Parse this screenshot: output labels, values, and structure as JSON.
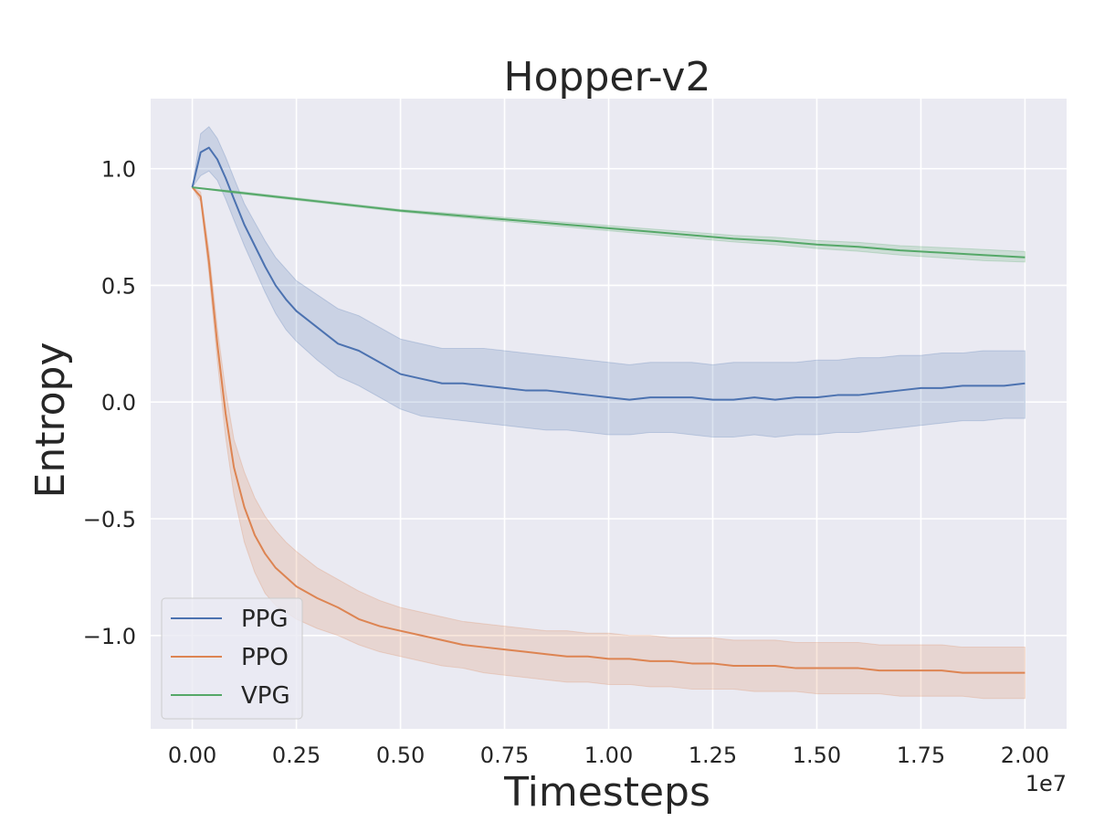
{
  "chart_data": {
    "type": "line",
    "title": "Hopper-v2",
    "xlabel": "Timesteps",
    "ylabel": "Entropy",
    "x_offset_label": "1e7",
    "xlim": [
      -0.1,
      2.1
    ],
    "ylim": [
      -1.4,
      1.3
    ],
    "x_ticks": [
      0.0,
      0.25,
      0.5,
      0.75,
      1.0,
      1.25,
      1.5,
      1.75,
      2.0
    ],
    "x_tick_labels": [
      "0.00",
      "0.25",
      "0.50",
      "0.75",
      "1.00",
      "1.25",
      "1.50",
      "1.75",
      "2.00"
    ],
    "y_ticks": [
      1.0,
      0.5,
      0.0,
      -0.5,
      -1.0
    ],
    "y_tick_labels": [
      "1.0",
      "0.5",
      "0.0",
      "−0.5",
      "−1.0"
    ],
    "grid": true,
    "background": "#eaeaf2",
    "legend_position": "lower-left",
    "series": [
      {
        "name": "PPG",
        "color": "#4c72b0",
        "x": [
          0.0,
          0.02,
          0.04,
          0.06,
          0.08,
          0.1,
          0.125,
          0.15,
          0.175,
          0.2,
          0.225,
          0.25,
          0.3,
          0.35,
          0.4,
          0.45,
          0.5,
          0.55,
          0.6,
          0.65,
          0.7,
          0.75,
          0.8,
          0.85,
          0.9,
          0.95,
          1.0,
          1.05,
          1.1,
          1.15,
          1.2,
          1.25,
          1.3,
          1.35,
          1.4,
          1.45,
          1.5,
          1.55,
          1.6,
          1.65,
          1.7,
          1.75,
          1.8,
          1.85,
          1.9,
          1.95,
          2.0
        ],
        "y": [
          0.92,
          1.07,
          1.09,
          1.04,
          0.96,
          0.87,
          0.76,
          0.67,
          0.58,
          0.5,
          0.44,
          0.39,
          0.32,
          0.25,
          0.22,
          0.17,
          0.12,
          0.1,
          0.08,
          0.08,
          0.07,
          0.06,
          0.05,
          0.05,
          0.04,
          0.03,
          0.02,
          0.01,
          0.02,
          0.02,
          0.02,
          0.01,
          0.01,
          0.02,
          0.01,
          0.02,
          0.02,
          0.03,
          0.03,
          0.04,
          0.05,
          0.06,
          0.06,
          0.07,
          0.07,
          0.07,
          0.08
        ],
        "y_lower": [
          0.92,
          0.97,
          0.99,
          0.95,
          0.87,
          0.78,
          0.67,
          0.57,
          0.47,
          0.38,
          0.31,
          0.26,
          0.18,
          0.11,
          0.07,
          0.02,
          -0.03,
          -0.06,
          -0.07,
          -0.08,
          -0.09,
          -0.1,
          -0.11,
          -0.12,
          -0.12,
          -0.13,
          -0.14,
          -0.14,
          -0.13,
          -0.13,
          -0.14,
          -0.15,
          -0.15,
          -0.14,
          -0.15,
          -0.14,
          -0.14,
          -0.13,
          -0.13,
          -0.12,
          -0.11,
          -0.1,
          -0.09,
          -0.08,
          -0.08,
          -0.07,
          -0.07
        ],
        "y_upper": [
          0.92,
          1.15,
          1.18,
          1.13,
          1.05,
          0.96,
          0.85,
          0.77,
          0.69,
          0.62,
          0.57,
          0.52,
          0.46,
          0.4,
          0.37,
          0.32,
          0.27,
          0.25,
          0.23,
          0.23,
          0.23,
          0.22,
          0.21,
          0.2,
          0.19,
          0.18,
          0.17,
          0.16,
          0.17,
          0.17,
          0.17,
          0.16,
          0.17,
          0.17,
          0.17,
          0.17,
          0.18,
          0.18,
          0.19,
          0.19,
          0.2,
          0.2,
          0.21,
          0.21,
          0.22,
          0.22,
          0.22
        ]
      },
      {
        "name": "PPO",
        "color": "#dd8452",
        "x": [
          0.0,
          0.02,
          0.04,
          0.06,
          0.08,
          0.1,
          0.125,
          0.15,
          0.175,
          0.2,
          0.225,
          0.25,
          0.3,
          0.35,
          0.4,
          0.45,
          0.5,
          0.55,
          0.6,
          0.65,
          0.7,
          0.75,
          0.8,
          0.85,
          0.9,
          0.95,
          1.0,
          1.05,
          1.1,
          1.15,
          1.2,
          1.25,
          1.3,
          1.35,
          1.4,
          1.45,
          1.5,
          1.55,
          1.6,
          1.65,
          1.7,
          1.75,
          1.8,
          1.85,
          1.9,
          1.95,
          2.0
        ],
        "y": [
          0.92,
          0.88,
          0.6,
          0.25,
          -0.05,
          -0.28,
          -0.45,
          -0.57,
          -0.65,
          -0.71,
          -0.75,
          -0.79,
          -0.84,
          -0.88,
          -0.93,
          -0.96,
          -0.98,
          -1.0,
          -1.02,
          -1.04,
          -1.05,
          -1.06,
          -1.07,
          -1.08,
          -1.09,
          -1.09,
          -1.1,
          -1.1,
          -1.11,
          -1.11,
          -1.12,
          -1.12,
          -1.13,
          -1.13,
          -1.13,
          -1.14,
          -1.14,
          -1.14,
          -1.14,
          -1.15,
          -1.15,
          -1.15,
          -1.15,
          -1.16,
          -1.16,
          -1.16,
          -1.16
        ],
        "y_lower": [
          0.92,
          0.86,
          0.55,
          0.18,
          -0.15,
          -0.4,
          -0.6,
          -0.73,
          -0.82,
          -0.87,
          -0.9,
          -0.93,
          -0.97,
          -1.0,
          -1.04,
          -1.07,
          -1.09,
          -1.11,
          -1.13,
          -1.14,
          -1.16,
          -1.17,
          -1.18,
          -1.19,
          -1.2,
          -1.2,
          -1.21,
          -1.21,
          -1.22,
          -1.22,
          -1.23,
          -1.23,
          -1.23,
          -1.24,
          -1.24,
          -1.24,
          -1.25,
          -1.25,
          -1.25,
          -1.25,
          -1.26,
          -1.26,
          -1.26,
          -1.26,
          -1.27,
          -1.27,
          -1.27
        ],
        "y_upper": [
          0.92,
          0.9,
          0.65,
          0.32,
          0.05,
          -0.16,
          -0.3,
          -0.41,
          -0.49,
          -0.55,
          -0.6,
          -0.64,
          -0.71,
          -0.76,
          -0.81,
          -0.85,
          -0.88,
          -0.9,
          -0.92,
          -0.94,
          -0.95,
          -0.96,
          -0.97,
          -0.98,
          -0.98,
          -0.99,
          -0.99,
          -1.0,
          -1.0,
          -1.01,
          -1.01,
          -1.01,
          -1.02,
          -1.02,
          -1.02,
          -1.03,
          -1.03,
          -1.03,
          -1.03,
          -1.04,
          -1.04,
          -1.04,
          -1.04,
          -1.05,
          -1.05,
          -1.05,
          -1.05
        ]
      },
      {
        "name": "VPG",
        "color": "#55a868",
        "x": [
          0.0,
          0.1,
          0.2,
          0.3,
          0.4,
          0.5,
          0.6,
          0.7,
          0.8,
          0.9,
          1.0,
          1.1,
          1.2,
          1.3,
          1.4,
          1.5,
          1.6,
          1.7,
          1.8,
          1.9,
          2.0
        ],
        "y": [
          0.92,
          0.9,
          0.88,
          0.86,
          0.84,
          0.82,
          0.805,
          0.79,
          0.775,
          0.76,
          0.745,
          0.73,
          0.715,
          0.7,
          0.69,
          0.675,
          0.665,
          0.65,
          0.64,
          0.63,
          0.62
        ],
        "y_lower": [
          0.92,
          0.895,
          0.875,
          0.855,
          0.835,
          0.815,
          0.798,
          0.782,
          0.766,
          0.75,
          0.734,
          0.718,
          0.702,
          0.686,
          0.674,
          0.658,
          0.646,
          0.63,
          0.618,
          0.606,
          0.6
        ],
        "y_upper": [
          0.92,
          0.905,
          0.885,
          0.865,
          0.845,
          0.825,
          0.812,
          0.798,
          0.784,
          0.77,
          0.756,
          0.742,
          0.728,
          0.714,
          0.706,
          0.692,
          0.684,
          0.67,
          0.662,
          0.654,
          0.645
        ]
      }
    ]
  }
}
